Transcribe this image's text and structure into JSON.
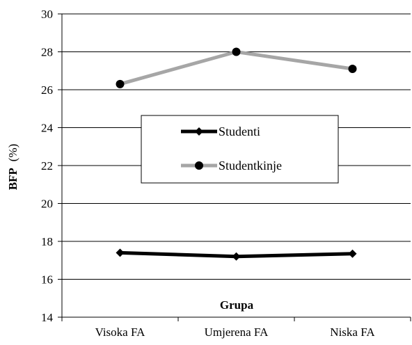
{
  "chart_data": {
    "type": "line",
    "categories": [
      "Visoka FA",
      "Umjerena FA",
      "Niska FA"
    ],
    "series": [
      {
        "name": "Studenti",
        "values": [
          17.4,
          17.2,
          17.35
        ],
        "color": "#000000",
        "marker": "diamond"
      },
      {
        "name": "Studentkinje",
        "values": [
          26.3,
          28.0,
          27.1
        ],
        "color": "#a6a6a6",
        "marker": "circle"
      }
    ],
    "xlabel": "Grupa",
    "ylabel": "BFP",
    "ylabel_unit": "(%)",
    "ylim": [
      14,
      30
    ],
    "yticks": [
      "14",
      "16",
      "18",
      "20",
      "22",
      "24",
      "26",
      "28",
      "30"
    ],
    "grid": true,
    "legend_position": "center"
  }
}
